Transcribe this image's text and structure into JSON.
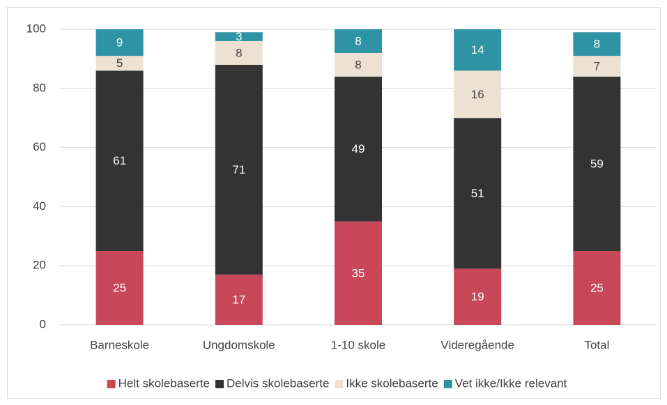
{
  "chart_data": {
    "type": "stacked_bar",
    "categories": [
      "Barneskole",
      "Ungdomskole",
      "1-10 skole",
      "Videregående",
      "Total"
    ],
    "series": [
      {
        "name": "Helt skolebaserte",
        "color": "#c8485a",
        "values": [
          25,
          17,
          35,
          19,
          25
        ]
      },
      {
        "name": "Delvis skolebaserte",
        "color": "#333333",
        "values": [
          61,
          71,
          49,
          51,
          59
        ]
      },
      {
        "name": "Ikke skolebaserte",
        "color": "#ede1d1",
        "values": [
          5,
          8,
          8,
          16,
          7
        ]
      },
      {
        "name": "Vet ikke/Ikke relevant",
        "color": "#2e93a4",
        "values": [
          9,
          3,
          8,
          14,
          8
        ]
      }
    ],
    "ylim": [
      0,
      100
    ],
    "yticks": [
      0,
      20,
      40,
      60,
      80,
      100
    ],
    "grid": true,
    "legend": "bottom"
  }
}
